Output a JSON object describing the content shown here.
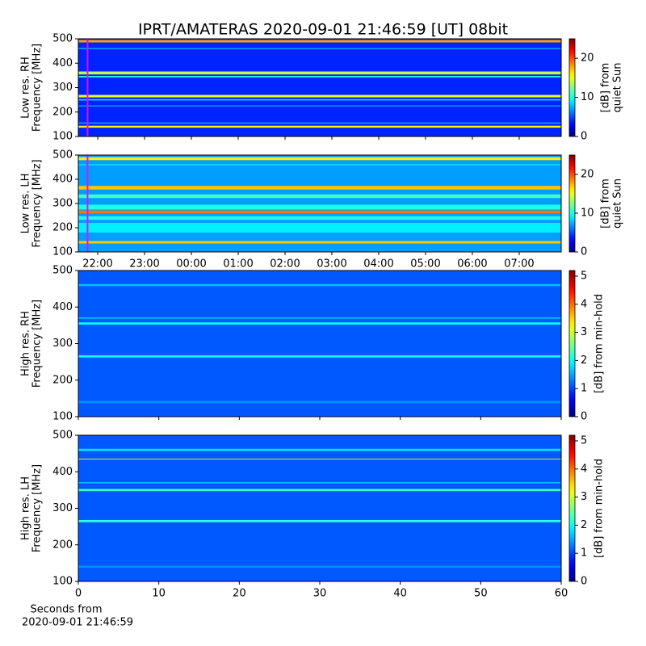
{
  "title": "IPRT/AMATERAS 2020-09-01 21:46:59 [UT]   08bit",
  "chart_data": [
    {
      "type": "heatmap",
      "ylabel": [
        "Low res. RH",
        "Frequency [MHz]"
      ],
      "ylim": [
        100,
        500
      ],
      "yticks": [
        100,
        200,
        300,
        400,
        500
      ],
      "colorbar_label": [
        "[dB] from",
        "quiet Sun"
      ],
      "clim": [
        0,
        25
      ],
      "cticks": [
        0,
        10,
        20
      ],
      "marker": 21.783,
      "marker_color": "#ff00ff",
      "background": 4,
      "bands": [
        {
          "freq": 490,
          "width": 10,
          "level": 18
        },
        {
          "freq": 460,
          "width": 4,
          "level": 8
        },
        {
          "freq": 360,
          "width": 12,
          "level": 14
        },
        {
          "freq": 345,
          "width": 6,
          "level": 10
        },
        {
          "freq": 265,
          "width": 10,
          "level": 15
        },
        {
          "freq": 250,
          "width": 5,
          "level": 9
        },
        {
          "freq": 225,
          "width": 5,
          "level": 7
        },
        {
          "freq": 155,
          "width": 4,
          "level": 8
        },
        {
          "freq": 140,
          "width": 8,
          "level": 16
        }
      ]
    },
    {
      "type": "heatmap",
      "ylabel": [
        "Low res. LH",
        "Frequency [MHz]"
      ],
      "ylim": [
        100,
        500
      ],
      "yticks": [
        100,
        200,
        300,
        400,
        500
      ],
      "colorbar_label": [
        "[dB] from",
        "quiet Sun"
      ],
      "clim": [
        0,
        25
      ],
      "cticks": [
        0,
        10,
        20
      ],
      "marker": 21.783,
      "marker_color": "#ff00ff",
      "background": 7,
      "xlim": [
        21.586,
        31.897
      ],
      "xticks": [
        {
          "value": 22,
          "label": "22:00"
        },
        {
          "value": 23,
          "label": "23:00"
        },
        {
          "value": 24,
          "label": "00:00"
        },
        {
          "value": 25,
          "label": "01:00"
        },
        {
          "value": 26,
          "label": "02:00"
        },
        {
          "value": 27,
          "label": "03:00"
        },
        {
          "value": 28,
          "label": "04:00"
        },
        {
          "value": 29,
          "label": "05:00"
        },
        {
          "value": 30,
          "label": "06:00"
        },
        {
          "value": 31,
          "label": "07:00"
        }
      ],
      "bands": [
        {
          "freq": 485,
          "width": 12,
          "level": 16
        },
        {
          "freq": 460,
          "width": 4,
          "level": 9
        },
        {
          "freq": 365,
          "width": 15,
          "level": 17
        },
        {
          "freq": 330,
          "width": 15,
          "level": 11
        },
        {
          "freq": 285,
          "width": 20,
          "level": 10
        },
        {
          "freq": 265,
          "width": 12,
          "level": 19
        },
        {
          "freq": 240,
          "width": 15,
          "level": 10
        },
        {
          "freq": 200,
          "width": 40,
          "level": 9
        },
        {
          "freq": 140,
          "width": 10,
          "level": 17
        }
      ]
    },
    {
      "type": "heatmap",
      "ylabel": [
        "High res. RH",
        "Frequency [MHz]"
      ],
      "ylim": [
        100,
        500
      ],
      "yticks": [
        100,
        200,
        300,
        400,
        500
      ],
      "colorbar_label": [
        "[dB] from min-hold"
      ],
      "clim": [
        0,
        5.2
      ],
      "cticks": [
        0,
        1,
        2,
        3,
        4,
        5
      ],
      "background": 1.1,
      "bands": [
        {
          "freq": 460,
          "width": 6,
          "level": 1.6
        },
        {
          "freq": 370,
          "width": 4,
          "level": 1.6
        },
        {
          "freq": 355,
          "width": 6,
          "level": 2
        },
        {
          "freq": 265,
          "width": 6,
          "level": 2
        },
        {
          "freq": 140,
          "width": 6,
          "level": 1.4
        }
      ]
    },
    {
      "type": "heatmap",
      "ylabel": [
        "High res. LH",
        "Frequency [MHz]"
      ],
      "ylim": [
        100,
        500
      ],
      "yticks": [
        100,
        200,
        300,
        400,
        500
      ],
      "colorbar_label": [
        "[dB] from min-hold"
      ],
      "clim": [
        0,
        5.2
      ],
      "cticks": [
        0,
        1,
        2,
        3,
        4,
        5
      ],
      "background": 1.1,
      "xlim": [
        0,
        60
      ],
      "xticks": [
        0,
        10,
        20,
        30,
        40,
        50,
        60
      ],
      "xlabel": [
        "Seconds from",
        "2020-09-01 21:46:59"
      ],
      "bands": [
        {
          "freq": 460,
          "width": 6,
          "level": 1.8
        },
        {
          "freq": 435,
          "width": 2,
          "level": 3
        },
        {
          "freq": 370,
          "width": 4,
          "level": 1.6
        },
        {
          "freq": 350,
          "width": 6,
          "level": 2.2
        },
        {
          "freq": 265,
          "width": 6,
          "level": 2.2
        },
        {
          "freq": 140,
          "width": 6,
          "level": 1.4
        }
      ]
    }
  ]
}
